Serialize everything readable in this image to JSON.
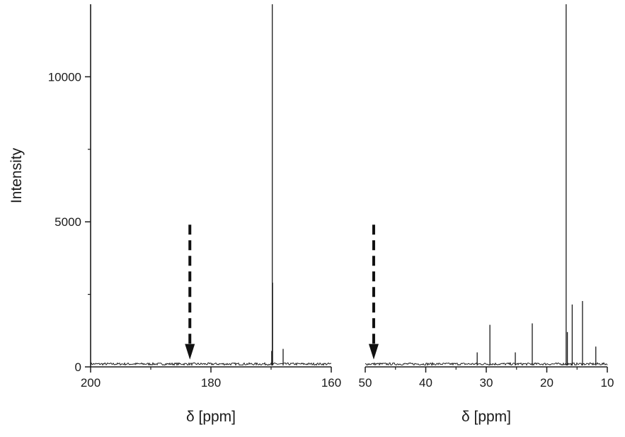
{
  "chart_data": {
    "type": "line",
    "ylabel": "Intensity",
    "ylim": [
      0,
      12500
    ],
    "yticks": [
      0,
      5000,
      10000
    ],
    "ytick_labels": [
      "0",
      "5000",
      "10000"
    ],
    "panels": [
      {
        "xlabel": "δ [ppm]",
        "xlim": [
          200,
          160
        ],
        "xticks": [
          200,
          180,
          160
        ],
        "xtick_labels": [
          "200",
          "180",
          "160"
        ],
        "peaks": [
          {
            "x": 169.8,
            "y": 12500
          },
          {
            "x": 169.75,
            "y": 2900
          },
          {
            "x": 169.9,
            "y": 550
          },
          {
            "x": 168.0,
            "y": 620
          }
        ],
        "arrow": {
          "x": 183.5,
          "y_top": 4900,
          "y_bottom": 350
        }
      },
      {
        "xlabel": "δ [ppm]",
        "xlim": [
          50,
          10
        ],
        "xticks": [
          50,
          40,
          30,
          20,
          10
        ],
        "xtick_labels": [
          "50",
          "40",
          "30",
          "20",
          "10"
        ],
        "peaks": [
          {
            "x": 31.5,
            "y": 500
          },
          {
            "x": 29.4,
            "y": 1450
          },
          {
            "x": 25.2,
            "y": 500
          },
          {
            "x": 22.4,
            "y": 1500
          },
          {
            "x": 16.8,
            "y": 12500
          },
          {
            "x": 16.6,
            "y": 1200
          },
          {
            "x": 15.8,
            "y": 2150
          },
          {
            "x": 14.1,
            "y": 2270
          },
          {
            "x": 11.9,
            "y": 700
          }
        ],
        "arrow": {
          "x": 48.6,
          "y_top": 4900,
          "y_bottom": 350
        }
      }
    ],
    "grid": false
  }
}
